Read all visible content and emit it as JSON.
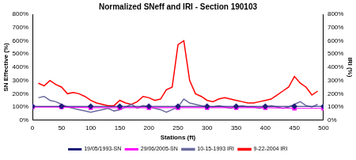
{
  "chart_data": {
    "type": "line",
    "title": "Normalized SNeff and IRI - Section 190103",
    "x_label": "Stations (ft)",
    "y_label": "SN Effective (%)",
    "y2_label": "IRI (%)",
    "xlim": [
      0,
      500
    ],
    "xticks": [
      0,
      50,
      100,
      150,
      200,
      250,
      300,
      350,
      400,
      450,
      500
    ],
    "ylim": [
      0,
      800
    ],
    "yticks": [
      {
        "value": 0,
        "label": "0%"
      },
      {
        "value": 100,
        "label": "100%"
      },
      {
        "value": 200,
        "label": "200%"
      },
      {
        "value": 300,
        "label": "300%"
      },
      {
        "value": 400,
        "label": "400%"
      },
      {
        "value": 500,
        "label": "500%"
      },
      {
        "value": 600,
        "label": "600%"
      },
      {
        "value": 700,
        "label": "700%"
      },
      {
        "value": 800,
        "label": "800%"
      }
    ],
    "y2lim": [
      0,
      800
    ],
    "y2ticks": [
      {
        "value": 0,
        "label": "0%"
      },
      {
        "value": 100,
        "label": "100%"
      },
      {
        "value": 200,
        "label": "200%"
      },
      {
        "value": 300,
        "label": "300%"
      },
      {
        "value": 400,
        "label": "400%"
      },
      {
        "value": 500,
        "label": "500%"
      },
      {
        "value": 600,
        "label": "600%"
      },
      {
        "value": 700,
        "label": "700%"
      },
      {
        "value": 800,
        "label": "800%"
      }
    ],
    "grid": false,
    "legend": "bottom",
    "series": [
      {
        "name": "19/05/1993-SN",
        "color": "#1f1f7a",
        "marker": "diamond",
        "line_style": "solid",
        "x": [
          0,
          50,
          100,
          150,
          200,
          250,
          300,
          350,
          400,
          450,
          500
        ],
        "values": [
          105,
          105,
          105,
          105,
          105,
          105,
          105,
          105,
          105,
          105,
          105
        ]
      },
      {
        "name": "29/06/2005-SN",
        "color": "#ff00ff",
        "marker": "square",
        "line_style": "solid",
        "x": [
          0,
          50,
          100,
          150,
          200,
          250,
          300,
          350,
          400,
          450,
          500
        ],
        "values": [
          100,
          100,
          95,
          95,
          95,
          95,
          95,
          95,
          95,
          90,
          90
        ]
      },
      {
        "name": "10-15-1993 IRI",
        "color": "#6b6b9e",
        "marker": "none",
        "line_style": "solid",
        "axis": "y2",
        "x": [
          10,
          20,
          30,
          40,
          50,
          60,
          70,
          80,
          90,
          100,
          110,
          120,
          130,
          140,
          150,
          160,
          170,
          180,
          190,
          200,
          210,
          220,
          230,
          240,
          250,
          260,
          270,
          280,
          290,
          300,
          310,
          320,
          330,
          340,
          350,
          360,
          370,
          380,
          390,
          400,
          410,
          420,
          430,
          440,
          450,
          460,
          470,
          480,
          490
        ],
        "values": [
          170,
          180,
          150,
          140,
          120,
          100,
          90,
          80,
          70,
          60,
          70,
          80,
          90,
          70,
          80,
          100,
          120,
          90,
          110,
          100,
          90,
          80,
          60,
          80,
          100,
          160,
          130,
          120,
          110,
          100,
          100,
          110,
          100,
          90,
          100,
          110,
          100,
          100,
          90,
          100,
          110,
          100,
          90,
          100,
          120,
          140,
          110,
          100,
          120
        ]
      },
      {
        "name": "9-22-2004 IRI",
        "color": "#ff0000",
        "marker": "none",
        "line_style": "solid",
        "axis": "y2",
        "x": [
          10,
          20,
          30,
          40,
          50,
          60,
          70,
          80,
          90,
          100,
          110,
          120,
          130,
          140,
          150,
          160,
          170,
          180,
          190,
          200,
          210,
          220,
          230,
          240,
          250,
          260,
          270,
          280,
          290,
          300,
          310,
          320,
          330,
          340,
          350,
          360,
          370,
          380,
          390,
          400,
          410,
          420,
          430,
          440,
          450,
          460,
          470,
          480,
          490
        ],
        "values": [
          280,
          260,
          300,
          270,
          250,
          200,
          210,
          200,
          180,
          150,
          130,
          120,
          110,
          110,
          150,
          130,
          120,
          140,
          180,
          170,
          150,
          160,
          230,
          250,
          570,
          600,
          300,
          200,
          180,
          150,
          140,
          160,
          170,
          160,
          150,
          140,
          130,
          130,
          140,
          150,
          160,
          190,
          220,
          250,
          330,
          280,
          250,
          190,
          220
        ]
      }
    ]
  }
}
